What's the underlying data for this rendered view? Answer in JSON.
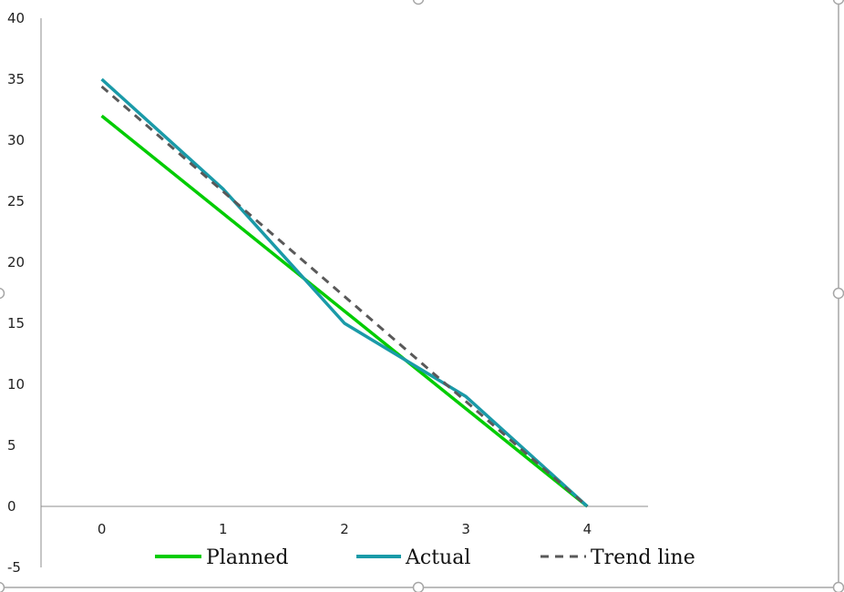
{
  "chart_data": {
    "type": "line",
    "title": "",
    "xlabel": "",
    "ylabel": "",
    "x": [
      0,
      1,
      2,
      3,
      4
    ],
    "xlim": [
      -0.5,
      4.5
    ],
    "ylim": [
      -5,
      40
    ],
    "y_ticks": [
      -5,
      0,
      5,
      10,
      15,
      20,
      25,
      30,
      35,
      40
    ],
    "x_ticks": [
      0,
      1,
      2,
      3,
      4
    ],
    "grid": false,
    "legend_placement": "bottom",
    "series": [
      {
        "name": "Planned",
        "values": [
          32,
          24,
          16,
          8,
          0
        ],
        "color": "#00cc00",
        "dash": "solid"
      },
      {
        "name": "Actual",
        "values": [
          35,
          26,
          15,
          9,
          0
        ],
        "color": "#1a9aa8",
        "dash": "solid"
      },
      {
        "name": "Trend line",
        "values": [
          34.4,
          25.8,
          17.2,
          8.6,
          0
        ],
        "color": "#595959",
        "dash": "dashed"
      }
    ]
  },
  "frame": {
    "border_color": "#a6a6a6",
    "handle_color": "#a6a6a6"
  }
}
